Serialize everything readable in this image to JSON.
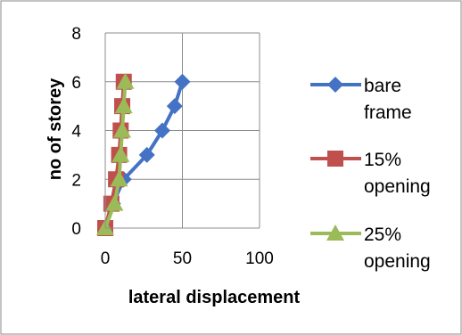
{
  "chart_data": {
    "type": "scatter",
    "title": "",
    "xlabel": "lateral displacement",
    "ylabel": "no of storey",
    "xlim": [
      0,
      100
    ],
    "ylim": [
      0,
      8
    ],
    "x_ticks": [
      0,
      50,
      100
    ],
    "y_ticks": [
      0,
      2,
      4,
      6,
      8
    ],
    "x_tick_labels": [
      "0",
      "50",
      "100"
    ],
    "y_tick_labels": [
      "0",
      "2",
      "4",
      "6",
      "8"
    ],
    "grid": "horizontal and vertical major gridlines",
    "legend_position": "right",
    "series": [
      {
        "name": "bare frame",
        "legend_lines": [
          "bare",
          "frame"
        ],
        "color": "#4472C4",
        "marker": "diamond",
        "x": [
          0,
          5,
          12,
          27,
          37,
          45,
          50
        ],
        "y": [
          0,
          1,
          2,
          3,
          4,
          5,
          6
        ]
      },
      {
        "name": "15% opening",
        "legend_lines": [
          "15%",
          "opening"
        ],
        "color": "#C0504D",
        "marker": "square",
        "x": [
          0,
          4,
          7,
          9,
          10,
          11,
          12
        ],
        "y": [
          0,
          1,
          2,
          3,
          4,
          5,
          6
        ]
      },
      {
        "name": "25% opening",
        "legend_lines": [
          "25%",
          "opening"
        ],
        "color": "#9BBB59",
        "marker": "triangle",
        "x": [
          0,
          6,
          9,
          10,
          11,
          12,
          13
        ],
        "y": [
          0,
          1,
          2,
          3,
          4,
          5,
          6
        ]
      }
    ]
  }
}
